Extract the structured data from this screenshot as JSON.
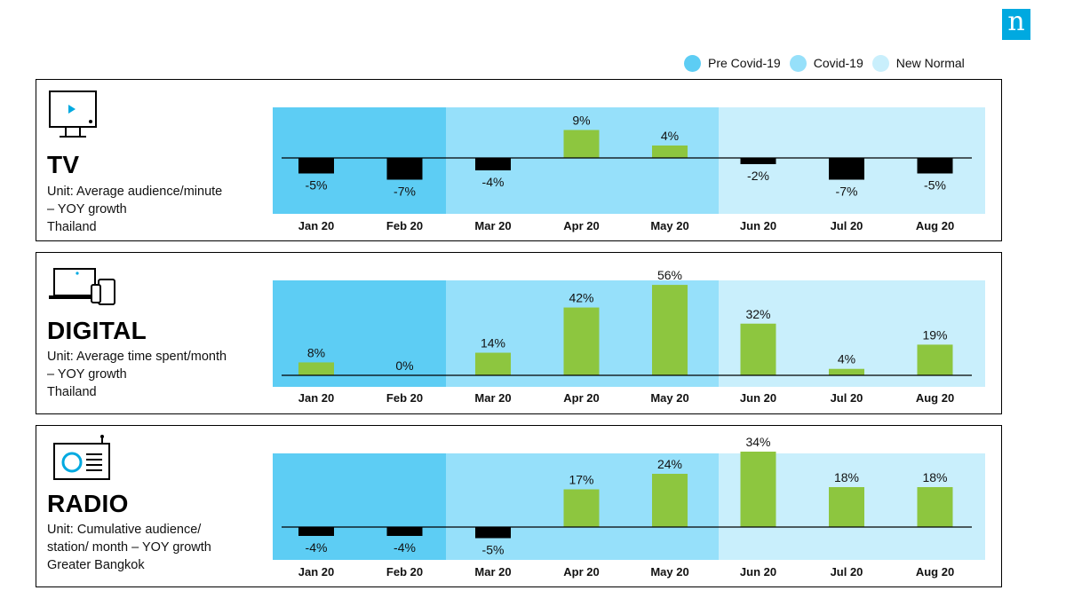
{
  "logo": {
    "text": "n",
    "color": "#00a9e0"
  },
  "legend": [
    {
      "label": "Pre Covid-19",
      "color": "#5dcdf4"
    },
    {
      "label": "Covid-19",
      "color": "#96e0fa"
    },
    {
      "label": "New Normal",
      "color": "#c9effc"
    }
  ],
  "colors": {
    "positive": "#8dc63f",
    "negative": "#000000"
  },
  "panels": [
    {
      "title": "TV",
      "unit": "Unit: Average  audience/minute\n– YOY growth\nThailand",
      "icon": "tv-icon"
    },
    {
      "title": "DIGITAL",
      "unit": "Unit: Average  time spent/month\n– YOY growth\nThailand",
      "icon": "devices-icon"
    },
    {
      "title": "RADIO",
      "unit": "Unit: Cumulative audience/\nstation/ month  – YOY growth\nGreater Bangkok",
      "icon": "radio-icon"
    }
  ],
  "chart_data": [
    {
      "type": "bar",
      "title": "TV",
      "categories": [
        "Jan 20",
        "Feb 20",
        "Mar 20",
        "Apr 20",
        "May 20",
        "Jun 20",
        "Jul 20",
        "Aug 20"
      ],
      "values": [
        -5,
        -7,
        -4,
        9,
        4,
        -2,
        -7,
        -5
      ],
      "labels": [
        "-5%",
        "-7%",
        "-4%",
        "9%",
        "4%",
        "-2%",
        "-7%",
        "-5%"
      ],
      "periods": [
        {
          "name": "Pre Covid-19",
          "categories": [
            "Jan 20",
            "Feb 20"
          ]
        },
        {
          "name": "Covid-19",
          "categories": [
            "Mar 20",
            "Apr 20",
            "May 20"
          ]
        },
        {
          "name": "New Normal",
          "categories": [
            "Jun 20",
            "Jul 20",
            "Aug 20"
          ]
        }
      ]
    },
    {
      "type": "bar",
      "title": "DIGITAL",
      "categories": [
        "Jan 20",
        "Feb 20",
        "Mar 20",
        "Apr 20",
        "May 20",
        "Jun 20",
        "Jul 20",
        "Aug 20"
      ],
      "values": [
        8,
        0,
        14,
        42,
        56,
        32,
        4,
        19
      ],
      "labels": [
        "8%",
        "0%",
        "14%",
        "42%",
        "56%",
        "32%",
        "4%",
        "19%"
      ],
      "periods": [
        {
          "name": "Pre Covid-19",
          "categories": [
            "Jan 20",
            "Feb 20"
          ]
        },
        {
          "name": "Covid-19",
          "categories": [
            "Mar 20",
            "Apr 20",
            "May 20"
          ]
        },
        {
          "name": "New Normal",
          "categories": [
            "Jun 20",
            "Jul 20",
            "Aug 20"
          ]
        }
      ]
    },
    {
      "type": "bar",
      "title": "RADIO",
      "categories": [
        "Jan 20",
        "Feb 20",
        "Mar 20",
        "Apr 20",
        "May 20",
        "Jun 20",
        "Jul 20",
        "Aug 20"
      ],
      "values": [
        -4,
        -4,
        -5,
        17,
        24,
        34,
        18,
        18
      ],
      "labels": [
        "-4%",
        "-4%",
        "-5%",
        "17%",
        "24%",
        "34%",
        "18%",
        "18%"
      ],
      "periods": [
        {
          "name": "Pre Covid-19",
          "categories": [
            "Jan 20",
            "Feb 20"
          ]
        },
        {
          "name": "Covid-19",
          "categories": [
            "Mar 20",
            "Apr 20",
            "May 20"
          ]
        },
        {
          "name": "New Normal",
          "categories": [
            "Jun 20",
            "Jul 20",
            "Aug 20"
          ]
        }
      ]
    }
  ]
}
